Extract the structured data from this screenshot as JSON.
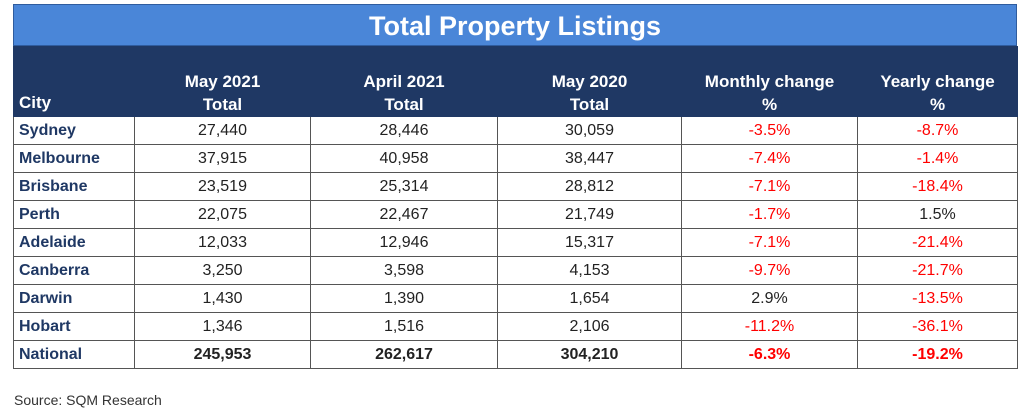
{
  "title": "Total Property Listings",
  "headers": {
    "city": "City",
    "col1": [
      "May 2021",
      "Total"
    ],
    "col2": [
      "April 2021",
      "Total"
    ],
    "col3": [
      "May 2020",
      "Total"
    ],
    "col4": [
      "Monthly change",
      "%"
    ],
    "col5": [
      "Yearly change",
      "%"
    ]
  },
  "rows": [
    {
      "city": "Sydney",
      "may2021": "27,440",
      "apr2021": "28,446",
      "may2020": "30,059",
      "monthly": "-3.5%",
      "yearly": "-8.7%"
    },
    {
      "city": "Melbourne",
      "may2021": "37,915",
      "apr2021": "40,958",
      "may2020": "38,447",
      "monthly": "-7.4%",
      "yearly": "-1.4%"
    },
    {
      "city": "Brisbane",
      "may2021": "23,519",
      "apr2021": "25,314",
      "may2020": "28,812",
      "monthly": "-7.1%",
      "yearly": "-18.4%"
    },
    {
      "city": "Perth",
      "may2021": "22,075",
      "apr2021": "22,467",
      "may2020": "21,749",
      "monthly": "-1.7%",
      "yearly": "1.5%"
    },
    {
      "city": "Adelaide",
      "may2021": "12,033",
      "apr2021": "12,946",
      "may2020": "15,317",
      "monthly": "-7.1%",
      "yearly": "-21.4%"
    },
    {
      "city": "Canberra",
      "may2021": "3,250",
      "apr2021": "3,598",
      "may2020": "4,153",
      "monthly": "-9.7%",
      "yearly": "-21.7%"
    },
    {
      "city": "Darwin",
      "may2021": "1,430",
      "apr2021": "1,390",
      "may2020": "1,654",
      "monthly": "2.9%",
      "yearly": "-13.5%"
    },
    {
      "city": "Hobart",
      "may2021": "1,346",
      "apr2021": "1,516",
      "may2020": "2,106",
      "monthly": "-11.2%",
      "yearly": "-36.1%"
    },
    {
      "city": "National",
      "may2021": "245,953",
      "apr2021": "262,617",
      "may2020": "304,210",
      "monthly": "-6.3%",
      "yearly": "-19.2%"
    }
  ],
  "source": "Source: SQM Research",
  "colors": {
    "title_bg": "#4a86d8",
    "header_bg": "#1f3864",
    "negative": "#ff0000",
    "city_text": "#1f3864"
  }
}
